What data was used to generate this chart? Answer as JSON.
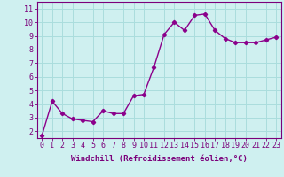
{
  "x": [
    0,
    1,
    2,
    3,
    4,
    5,
    6,
    7,
    8,
    9,
    10,
    11,
    12,
    13,
    14,
    15,
    16,
    17,
    18,
    19,
    20,
    21,
    22,
    23
  ],
  "y": [
    1.7,
    4.2,
    3.3,
    2.9,
    2.8,
    2.7,
    3.5,
    3.3,
    3.3,
    4.6,
    4.7,
    6.7,
    9.1,
    10.0,
    9.4,
    10.5,
    10.6,
    9.4,
    8.8,
    8.5,
    8.5,
    8.5,
    8.7,
    8.9
  ],
  "line_color": "#8B008B",
  "marker": "D",
  "marker_size": 2.2,
  "line_width": 1.0,
  "xlabel": "Windchill (Refroidissement éolien,°C)",
  "ylim": [
    1.5,
    11.5
  ],
  "xlim": [
    -0.5,
    23.5
  ],
  "yticks": [
    2,
    3,
    4,
    5,
    6,
    7,
    8,
    9,
    10,
    11
  ],
  "xticks": [
    0,
    1,
    2,
    3,
    4,
    5,
    6,
    7,
    8,
    9,
    10,
    11,
    12,
    13,
    14,
    15,
    16,
    17,
    18,
    19,
    20,
    21,
    22,
    23
  ],
  "bg_color": "#cff0f0",
  "grid_color": "#aadddd",
  "axis_color": "#7b007b",
  "tick_color": "#7b007b",
  "label_color": "#7b007b",
  "xlabel_fontsize": 6.5,
  "tick_fontsize": 6.0
}
